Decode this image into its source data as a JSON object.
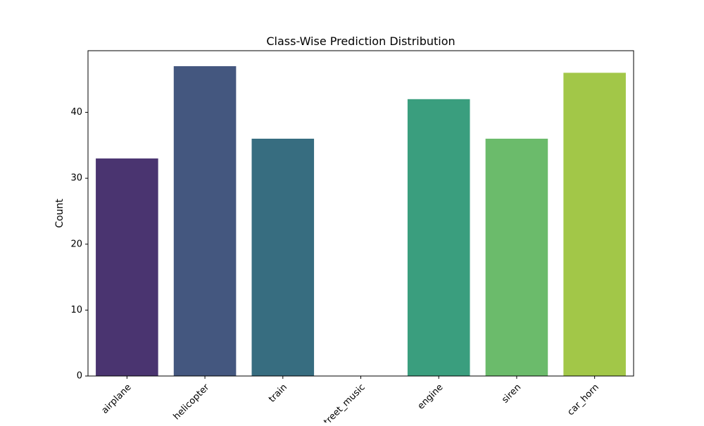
{
  "chart_data": {
    "type": "bar",
    "title": "Class-Wise Prediction Distribution",
    "xlabel": "",
    "ylabel": "Count",
    "categories": [
      "airplane",
      "helicopter",
      "train",
      "street_music",
      "engine",
      "siren",
      "car_horn"
    ],
    "values": [
      33,
      47,
      36,
      0,
      42,
      36,
      46
    ],
    "colors": [
      "#4a3470",
      "#44577f",
      "#376d80",
      "#2f8b80",
      "#3a9e7e",
      "#6bbb6b",
      "#a2c748"
    ],
    "yticks": [
      0,
      10,
      20,
      30,
      40
    ],
    "ylim": [
      0,
      49.35
    ],
    "grid": false,
    "legend": "none"
  }
}
